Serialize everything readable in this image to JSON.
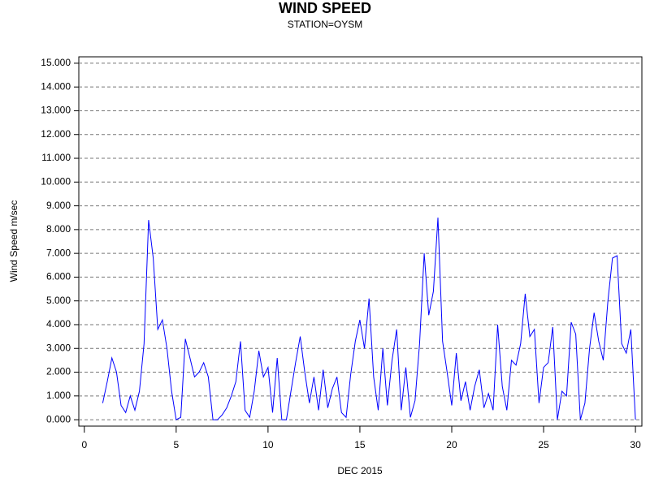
{
  "chart_data": {
    "type": "line",
    "title": "WIND SPEED",
    "subtitle": "STATION=OYSM",
    "x_label": "DEC 2015",
    "y_label": "Wind Speed m/sec",
    "x": [
      1.0,
      1.25,
      1.5,
      1.75,
      2.0,
      2.25,
      2.5,
      2.75,
      3.0,
      3.25,
      3.5,
      3.75,
      4.0,
      4.25,
      4.5,
      4.75,
      5.0,
      5.25,
      5.5,
      5.75,
      6.0,
      6.25,
      6.5,
      6.75,
      7.0,
      7.25,
      7.5,
      7.75,
      8.0,
      8.25,
      8.5,
      8.75,
      9.0,
      9.25,
      9.5,
      9.75,
      10.0,
      10.25,
      10.5,
      10.75,
      11.0,
      11.25,
      11.5,
      11.75,
      12.0,
      12.25,
      12.5,
      12.75,
      13.0,
      13.25,
      13.5,
      13.75,
      14.0,
      14.25,
      14.5,
      14.75,
      15.0,
      15.25,
      15.5,
      15.75,
      16.0,
      16.25,
      16.5,
      16.75,
      17.0,
      17.25,
      17.5,
      17.75,
      18.0,
      18.25,
      18.5,
      18.75,
      19.0,
      19.25,
      19.5,
      19.75,
      20.0,
      20.25,
      20.5,
      20.75,
      21.0,
      21.25,
      21.5,
      21.75,
      22.0,
      22.25,
      22.5,
      22.75,
      23.0,
      23.25,
      23.5,
      23.75,
      24.0,
      24.25,
      24.5,
      24.75,
      25.0,
      25.25,
      25.5,
      25.75,
      26.0,
      26.25,
      26.5,
      26.75,
      27.0,
      27.25,
      27.5,
      27.75,
      28.0,
      28.25,
      28.5,
      28.75,
      29.0,
      29.25,
      29.5,
      29.75,
      30.0
    ],
    "series": [
      {
        "name": "Wind Speed",
        "color": "#0000ff",
        "values": [
          0.7,
          1.6,
          2.6,
          2.0,
          0.6,
          0.3,
          1.0,
          0.4,
          1.2,
          3.2,
          8.4,
          6.8,
          3.8,
          4.2,
          3.0,
          1.2,
          0.0,
          0.1,
          3.4,
          2.6,
          1.8,
          2.0,
          2.4,
          1.8,
          0.0,
          0.0,
          0.2,
          0.5,
          1.0,
          1.6,
          3.3,
          0.4,
          0.1,
          1.2,
          2.9,
          1.8,
          2.2,
          0.3,
          2.6,
          0.0,
          0.0,
          1.2,
          2.4,
          3.5,
          2.0,
          0.7,
          1.8,
          0.4,
          2.1,
          0.5,
          1.3,
          1.8,
          0.3,
          0.1,
          1.9,
          3.3,
          4.2,
          3.0,
          5.1,
          1.8,
          0.4,
          3.0,
          0.6,
          2.5,
          3.8,
          0.4,
          2.2,
          0.1,
          0.8,
          3.2,
          7.0,
          4.4,
          5.4,
          8.5,
          3.3,
          2.0,
          0.6,
          2.8,
          0.8,
          1.6,
          0.4,
          1.4,
          2.1,
          0.5,
          1.1,
          0.4,
          4.0,
          1.4,
          0.4,
          2.5,
          2.3,
          3.2,
          5.3,
          3.5,
          3.8,
          0.7,
          2.2,
          2.4,
          3.9,
          0.0,
          1.2,
          1.0,
          4.1,
          3.6,
          0.0,
          0.7,
          3.0,
          4.5,
          3.3,
          2.5,
          5.0,
          6.8,
          6.9,
          3.2,
          2.8,
          3.8,
          0.0
        ]
      }
    ],
    "xlim": [
      -0.3,
      30.35
    ],
    "xticks": [
      0,
      5,
      10,
      15,
      20,
      25,
      30
    ],
    "ylim": [
      -0.27,
      15.27
    ],
    "yticks": [
      {
        "value": 0,
        "label": "0.000"
      },
      {
        "value": 1,
        "label": "1.000"
      },
      {
        "value": 2,
        "label": "2.000"
      },
      {
        "value": 3,
        "label": "3.000"
      },
      {
        "value": 4,
        "label": "4.000"
      },
      {
        "value": 5,
        "label": "5.000"
      },
      {
        "value": 6,
        "label": "6.000"
      },
      {
        "value": 7,
        "label": "7.000"
      },
      {
        "value": 8,
        "label": "8.000"
      },
      {
        "value": 9,
        "label": "9.000"
      },
      {
        "value": 10,
        "label": "10.000"
      },
      {
        "value": 11,
        "label": "11.000"
      },
      {
        "value": 12,
        "label": "12.000"
      },
      {
        "value": 13,
        "label": "13.000"
      },
      {
        "value": 14,
        "label": "14.000"
      },
      {
        "value": 15,
        "label": "15.000"
      }
    ],
    "grid": true
  }
}
